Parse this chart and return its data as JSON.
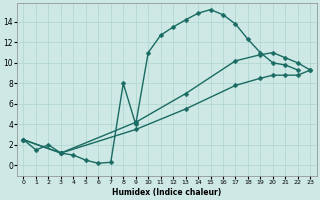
{
  "xlabel": "Humidex (Indice chaleur)",
  "xlim": [
    -0.5,
    23.5
  ],
  "ylim": [
    -1.0,
    15.8
  ],
  "xticks": [
    0,
    1,
    2,
    3,
    4,
    5,
    6,
    7,
    8,
    9,
    10,
    11,
    12,
    13,
    14,
    15,
    16,
    17,
    18,
    19,
    20,
    21,
    22,
    23
  ],
  "yticks": [
    0,
    2,
    4,
    6,
    8,
    10,
    12,
    14
  ],
  "bg_color": "#cde8e5",
  "line_color": "#1a6b63",
  "grid_color": "#afd4cf",
  "curves": [
    {
      "x": [
        0,
        1,
        2,
        3,
        4,
        5,
        6,
        7,
        8,
        9,
        10,
        11,
        12,
        13,
        14,
        15,
        16,
        17,
        18,
        19,
        20,
        21,
        22
      ],
      "y": [
        2.5,
        1.5,
        2.0,
        1.2,
        1.0,
        0.5,
        0.2,
        0.3,
        8.0,
        4.0,
        11.0,
        12.7,
        13.5,
        14.2,
        14.85,
        15.2,
        14.7,
        13.8,
        12.3,
        11.0,
        10.0,
        9.8,
        9.3
      ]
    },
    {
      "x": [
        0,
        3,
        9,
        13,
        17,
        19,
        20,
        21,
        22,
        23
      ],
      "y": [
        2.5,
        1.2,
        4.2,
        7.0,
        10.2,
        10.8,
        11.0,
        10.5,
        10.0,
        9.3
      ]
    },
    {
      "x": [
        0,
        3,
        9,
        13,
        17,
        19,
        20,
        21,
        22,
        23
      ],
      "y": [
        2.5,
        1.2,
        3.5,
        5.5,
        7.8,
        8.5,
        8.8,
        8.8,
        8.8,
        9.3
      ]
    }
  ],
  "markersize": 2.5,
  "linewidth": 1.0
}
